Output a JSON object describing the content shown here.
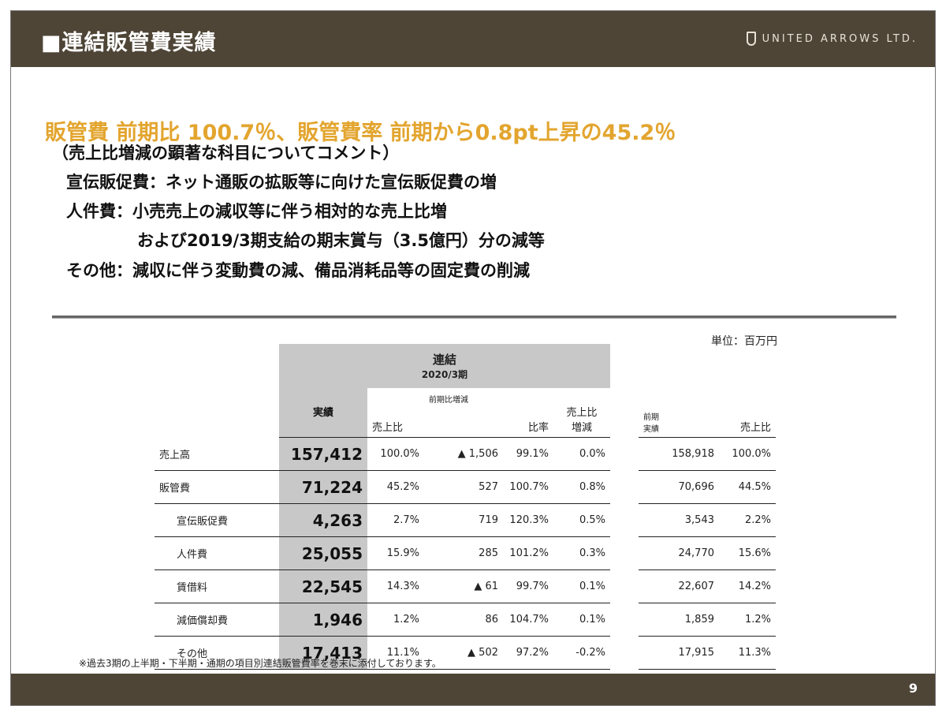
{
  "header": {
    "title": "■連結販管費実績",
    "logo_text": "UNITED ARROWS LTD."
  },
  "headline": "販管費 前期比 100.7％、販管費率 前期から0.8pt上昇の45.2％",
  "comments": [
    "（売上比増減の顕著な科目についてコメント）",
    "宣伝販促費：ネット通販の拡販等に向けた宣伝販促費の増",
    "人件費：小売売上の減収等に伴う相対的な売上比増",
    "および2019/3期支給の期末賞与（3.5億円）分の減等",
    "その他：減収に伴う変動費の減、備品消耗品等の固定費の削減"
  ],
  "unit": "単位：百万円",
  "table": {
    "group_title": "連結",
    "group_period": "2020/3期",
    "col_actual": "実績",
    "col_ratio": "売上比",
    "col_yoy_group": "前期比増減",
    "col_rate": "比率",
    "col_ratio_change_1": "売上比",
    "col_ratio_change_2": "増減",
    "col_prev_1": "前期",
    "col_prev_2": "実績",
    "col_prev_ratio": "売上比",
    "rows": [
      {
        "label": "売上高",
        "actual": "157,412",
        "ratio": "100.0%",
        "change": "▲ 1,506",
        "rate": "99.1%",
        "ratio_change": "0.0%",
        "prev": "158,918",
        "prev_ratio": "100.0%"
      },
      {
        "label": "販管費",
        "actual": "71,224",
        "ratio": "45.2%",
        "change": "527",
        "rate": "100.7%",
        "ratio_change": "0.8%",
        "prev": "70,696",
        "prev_ratio": "44.5%"
      },
      {
        "label": "宣伝販促費",
        "actual": "4,263",
        "ratio": "2.7%",
        "change": "719",
        "rate": "120.3%",
        "ratio_change": "0.5%",
        "prev": "3,543",
        "prev_ratio": "2.2%"
      },
      {
        "label": "人件費",
        "actual": "25,055",
        "ratio": "15.9%",
        "change": "285",
        "rate": "101.2%",
        "ratio_change": "0.3%",
        "prev": "24,770",
        "prev_ratio": "15.6%"
      },
      {
        "label": "賃借料",
        "actual": "22,545",
        "ratio": "14.3%",
        "change": "▲ 61",
        "rate": "99.7%",
        "ratio_change": "0.1%",
        "prev": "22,607",
        "prev_ratio": "14.2%"
      },
      {
        "label": "減価償却費",
        "actual": "1,946",
        "ratio": "1.2%",
        "change": "86",
        "rate": "104.7%",
        "ratio_change": "0.1%",
        "prev": "1,859",
        "prev_ratio": "1.2%"
      },
      {
        "label": "その他",
        "actual": "17,413",
        "ratio": "11.1%",
        "change": "▲ 502",
        "rate": "97.2%",
        "ratio_change": "-0.2%",
        "prev": "17,915",
        "prev_ratio": "11.3%"
      }
    ]
  },
  "note": "※過去3期の上半期・下半期・通期の項目別連結販管費率を巻末に添付しております。",
  "page_number": "9",
  "colors": {
    "header_bg": "#4e4537",
    "headline": "#e3a52f",
    "actual_bg": "#c8c8c8"
  }
}
